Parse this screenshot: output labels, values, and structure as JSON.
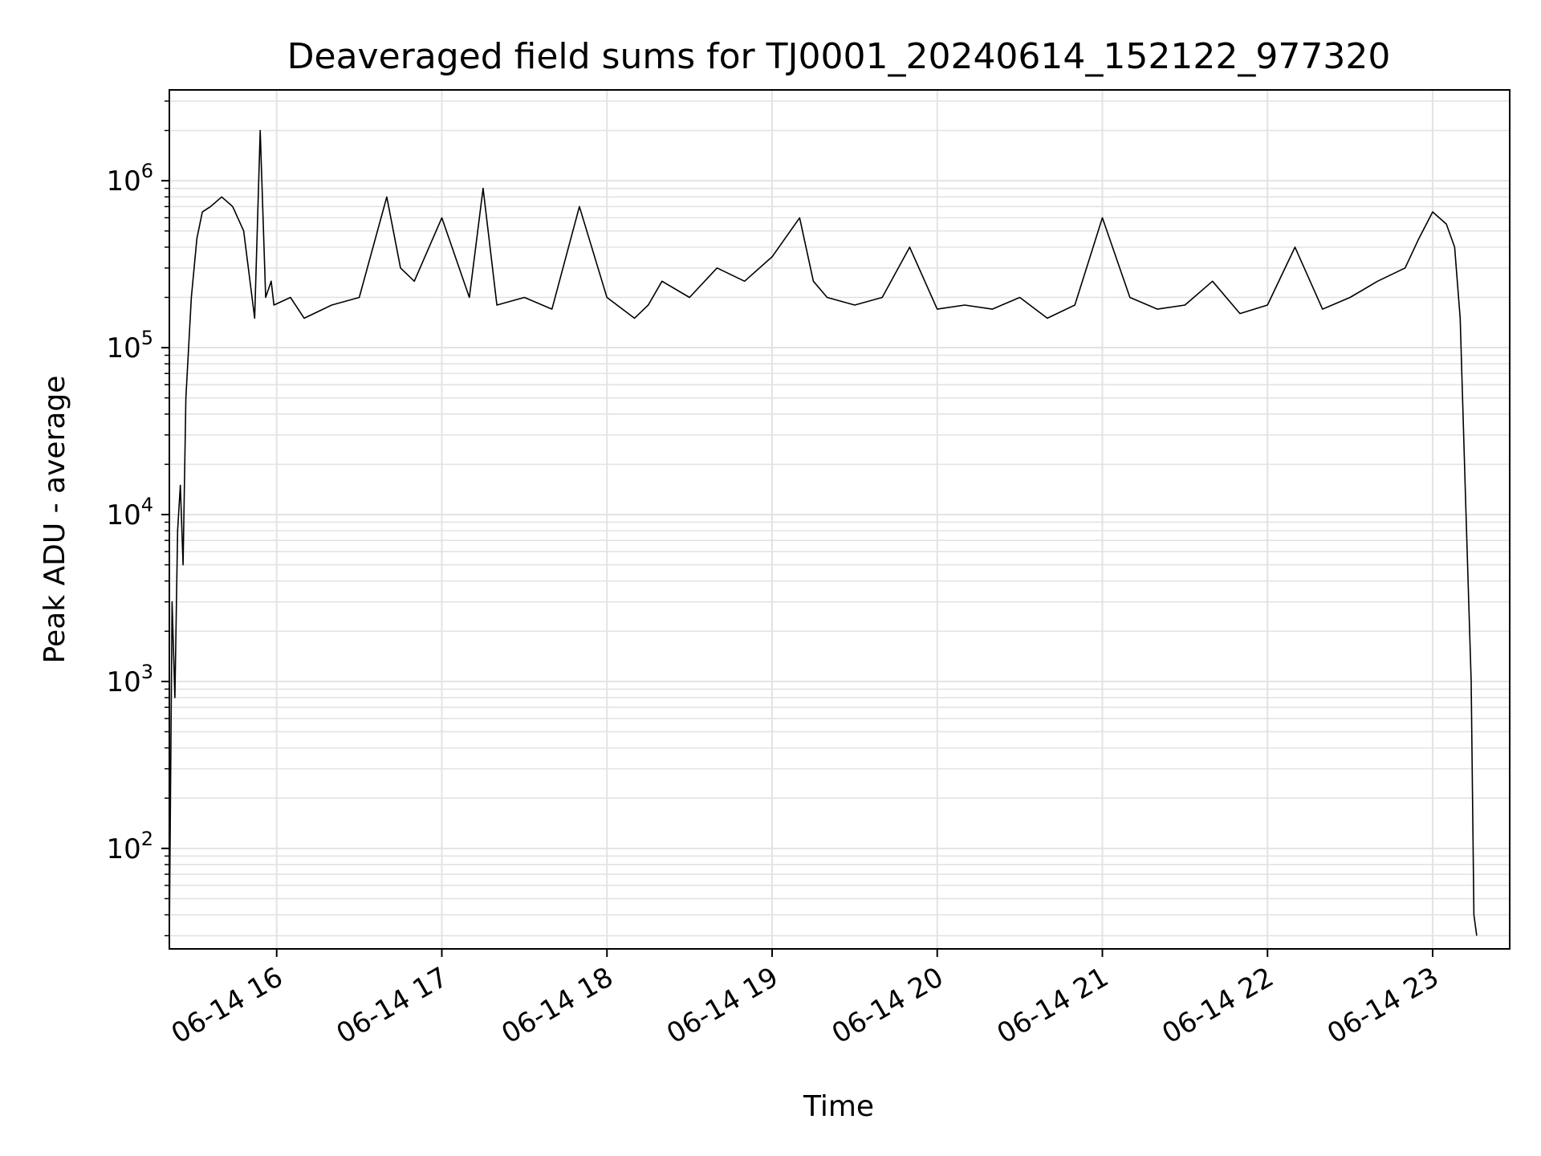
{
  "chart_data": {
    "type": "line",
    "title": "Deaveraged field sums for TJ0001_20240614_152122_977320",
    "xlabel": "Time",
    "ylabel": "Peak ADU - average",
    "yscale": "log",
    "ylim": [
      25,
      3500000
    ],
    "xlim": [
      "2024-06-14 15:21",
      "2024-06-14 23:28"
    ],
    "grid": true,
    "line_color": "#000000",
    "x_ticks": [
      {
        "x": "2024-06-14 16:00",
        "label": "06-14 16"
      },
      {
        "x": "2024-06-14 17:00",
        "label": "06-14 17"
      },
      {
        "x": "2024-06-14 18:00",
        "label": "06-14 18"
      },
      {
        "x": "2024-06-14 19:00",
        "label": "06-14 19"
      },
      {
        "x": "2024-06-14 20:00",
        "label": "06-14 20"
      },
      {
        "x": "2024-06-14 21:00",
        "label": "06-14 21"
      },
      {
        "x": "2024-06-14 22:00",
        "label": "06-14 22"
      },
      {
        "x": "2024-06-14 23:00",
        "label": "06-14 23"
      }
    ],
    "y_ticks": [
      {
        "value": 100,
        "base": "10",
        "exp": "2"
      },
      {
        "value": 1000,
        "base": "10",
        "exp": "3"
      },
      {
        "value": 10000,
        "base": "10",
        "exp": "4"
      },
      {
        "value": 100000,
        "base": "10",
        "exp": "5"
      },
      {
        "value": 1000000,
        "base": "10",
        "exp": "6"
      }
    ],
    "series": [
      {
        "x": [
          "2024-06-14 15:21",
          "2024-06-14 15:22",
          "2024-06-14 15:23",
          "2024-06-14 15:24",
          "2024-06-14 15:25",
          "2024-06-14 15:26",
          "2024-06-14 15:27",
          "2024-06-14 15:29",
          "2024-06-14 15:31",
          "2024-06-14 15:33",
          "2024-06-14 15:36",
          "2024-06-14 15:40",
          "2024-06-14 15:44",
          "2024-06-14 15:48",
          "2024-06-14 15:52",
          "2024-06-14 15:54",
          "2024-06-14 15:56",
          "2024-06-14 15:58",
          "2024-06-14 15:59",
          "2024-06-14 16:05",
          "2024-06-14 16:10",
          "2024-06-14 16:20",
          "2024-06-14 16:30",
          "2024-06-14 16:40",
          "2024-06-14 16:45",
          "2024-06-14 16:50",
          "2024-06-14 17:00",
          "2024-06-14 17:10",
          "2024-06-14 17:15",
          "2024-06-14 17:20",
          "2024-06-14 17:30",
          "2024-06-14 17:40",
          "2024-06-14 17:50",
          "2024-06-14 18:00",
          "2024-06-14 18:10",
          "2024-06-14 18:15",
          "2024-06-14 18:20",
          "2024-06-14 18:30",
          "2024-06-14 18:40",
          "2024-06-14 18:50",
          "2024-06-14 19:00",
          "2024-06-14 19:10",
          "2024-06-14 19:15",
          "2024-06-14 19:20",
          "2024-06-14 19:30",
          "2024-06-14 19:40",
          "2024-06-14 19:50",
          "2024-06-14 20:00",
          "2024-06-14 20:10",
          "2024-06-14 20:20",
          "2024-06-14 20:30",
          "2024-06-14 20:40",
          "2024-06-14 20:50",
          "2024-06-14 21:00",
          "2024-06-14 21:10",
          "2024-06-14 21:20",
          "2024-06-14 21:30",
          "2024-06-14 21:40",
          "2024-06-14 21:50",
          "2024-06-14 22:00",
          "2024-06-14 22:10",
          "2024-06-14 22:20",
          "2024-06-14 22:30",
          "2024-06-14 22:40",
          "2024-06-14 22:50",
          "2024-06-14 22:55",
          "2024-06-14 23:00",
          "2024-06-14 23:05",
          "2024-06-14 23:08",
          "2024-06-14 23:10",
          "2024-06-14 23:12",
          "2024-06-14 23:14",
          "2024-06-14 23:15",
          "2024-06-14 23:16"
        ],
        "y": [
          30,
          3000,
          800,
          8000,
          15000,
          5000,
          50000,
          200000,
          450000,
          650000,
          700000,
          800000,
          700000,
          500000,
          150000,
          2000000,
          200000,
          250000,
          180000,
          200000,
          150000,
          180000,
          200000,
          800000,
          300000,
          250000,
          600000,
          200000,
          900000,
          180000,
          200000,
          170000,
          700000,
          200000,
          150000,
          180000,
          250000,
          200000,
          300000,
          250000,
          350000,
          600000,
          250000,
          200000,
          180000,
          200000,
          400000,
          170000,
          180000,
          170000,
          200000,
          150000,
          180000,
          600000,
          200000,
          170000,
          180000,
          250000,
          160000,
          180000,
          400000,
          170000,
          200000,
          250000,
          300000,
          450000,
          650000,
          550000,
          400000,
          150000,
          12000,
          1000,
          40,
          30
        ]
      }
    ]
  }
}
